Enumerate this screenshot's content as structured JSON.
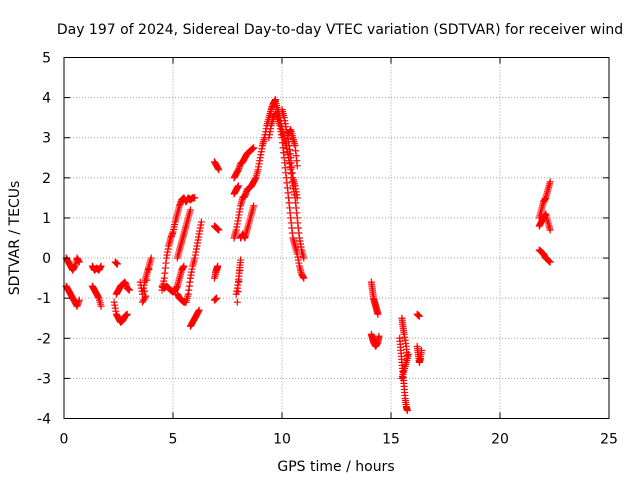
{
  "chart_data": {
    "type": "scatter",
    "title": "Day 197 of 2024, Sidereal Day-to-day VTEC variation (SDTVAR) for receiver wind",
    "xlabel": "GPS time / hours",
    "ylabel": "SDTVAR / TECUs",
    "xlim": [
      0,
      25
    ],
    "ylim": [
      -4,
      5
    ],
    "xticks": [
      "0",
      "5",
      "10",
      "15",
      "20",
      "25"
    ],
    "yticks": [
      "-4",
      "-3",
      "-2",
      "-1",
      "0",
      "1",
      "2",
      "3",
      "4",
      "5"
    ],
    "xtick_values": [
      0,
      5,
      10,
      15,
      20,
      25
    ],
    "ytick_values": [
      -4,
      -3,
      -2,
      -1,
      0,
      1,
      2,
      3,
      4,
      5
    ],
    "grid": true,
    "marker": "+",
    "series_color": "#ff0000",
    "series": [
      {
        "name": "SDTVAR",
        "segments": [
          [
            [
              0.1,
              0.0
            ],
            [
              0.2,
              -0.1
            ],
            [
              0.3,
              -0.2
            ],
            [
              0.4,
              -0.3
            ],
            [
              0.5,
              -0.2
            ],
            [
              0.6,
              0.0
            ],
            [
              0.7,
              -0.1
            ]
          ],
          [
            [
              0.1,
              -0.7
            ],
            [
              0.2,
              -0.8
            ],
            [
              0.3,
              -0.9
            ],
            [
              0.4,
              -1.0
            ],
            [
              0.5,
              -1.1
            ],
            [
              0.6,
              -1.2
            ],
            [
              0.7,
              -1.05
            ]
          ],
          [
            [
              1.3,
              -0.2
            ],
            [
              1.4,
              -0.3
            ],
            [
              1.5,
              -0.25
            ],
            [
              1.6,
              -0.3
            ],
            [
              1.7,
              -0.2
            ]
          ],
          [
            [
              1.3,
              -0.7
            ],
            [
              1.4,
              -0.8
            ],
            [
              1.5,
              -0.9
            ],
            [
              1.6,
              -1.0
            ],
            [
              1.7,
              -1.2
            ]
          ],
          [
            [
              2.35,
              -0.1
            ],
            [
              2.45,
              -0.15
            ]
          ],
          [
            [
              2.3,
              -1.1
            ],
            [
              2.4,
              -1.4
            ],
            [
              2.5,
              -1.5
            ],
            [
              2.6,
              -1.6
            ],
            [
              2.7,
              -1.55
            ],
            [
              2.8,
              -1.45
            ],
            [
              2.9,
              -1.4
            ]
          ],
          [
            [
              2.4,
              -0.9
            ],
            [
              2.5,
              -0.8
            ],
            [
              2.6,
              -0.7
            ],
            [
              2.7,
              -0.65
            ],
            [
              2.8,
              -0.6
            ],
            [
              2.9,
              -0.75
            ],
            [
              3.0,
              -0.8
            ]
          ],
          [
            [
              3.5,
              -0.6
            ],
            [
              3.6,
              -0.9
            ],
            [
              3.7,
              -0.6
            ],
            [
              3.8,
              -0.4
            ],
            [
              3.9,
              -0.2
            ],
            [
              4.0,
              0.0
            ],
            [
              3.6,
              -1.1
            ],
            [
              3.75,
              -0.95
            ]
          ],
          [
            [
              4.5,
              -0.8
            ],
            [
              4.6,
              -0.5
            ],
            [
              4.7,
              0.0
            ],
            [
              4.8,
              0.3
            ],
            [
              4.9,
              0.5
            ],
            [
              5.0,
              0.65
            ],
            [
              5.1,
              0.9
            ],
            [
              5.2,
              1.1
            ],
            [
              5.3,
              1.3
            ],
            [
              5.4,
              1.45
            ],
            [
              5.5,
              1.5
            ],
            [
              5.6,
              1.4
            ],
            [
              5.7,
              1.5
            ],
            [
              5.8,
              1.45
            ],
            [
              5.9,
              1.5
            ],
            [
              6.0,
              1.5
            ]
          ],
          [
            [
              4.5,
              -0.7
            ],
            [
              4.6,
              -0.75
            ],
            [
              4.7,
              -0.7
            ],
            [
              4.8,
              -0.75
            ],
            [
              4.9,
              -0.8
            ],
            [
              5.0,
              -0.85
            ],
            [
              5.1,
              -0.8
            ],
            [
              5.2,
              -0.7
            ],
            [
              5.3,
              -0.5
            ],
            [
              5.4,
              -0.3
            ],
            [
              5.5,
              -0.2
            ]
          ],
          [
            [
              5.2,
              -0.9
            ],
            [
              5.3,
              -1.0
            ],
            [
              5.4,
              -1.05
            ],
            [
              5.5,
              -1.1
            ],
            [
              5.6,
              -1.1
            ],
            [
              5.7,
              -0.9
            ],
            [
              5.8,
              -0.5
            ],
            [
              5.9,
              -0.2
            ],
            [
              6.0,
              0.0
            ],
            [
              6.1,
              0.3
            ],
            [
              6.2,
              0.6
            ],
            [
              6.3,
              0.9
            ]
          ],
          [
            [
              5.2,
              0.0
            ],
            [
              5.3,
              0.2
            ],
            [
              5.4,
              0.4
            ],
            [
              5.5,
              0.6
            ],
            [
              5.6,
              0.8
            ],
            [
              5.7,
              1.0
            ],
            [
              5.8,
              1.2
            ]
          ],
          [
            [
              5.8,
              -1.7
            ],
            [
              5.9,
              -1.6
            ],
            [
              6.0,
              -1.5
            ],
            [
              6.1,
              -1.4
            ],
            [
              6.2,
              -1.3
            ]
          ],
          [
            [
              6.9,
              2.4
            ],
            [
              7.0,
              2.3
            ],
            [
              7.1,
              2.2
            ]
          ],
          [
            [
              6.9,
              0.8
            ],
            [
              7.0,
              0.75
            ],
            [
              7.1,
              0.7
            ]
          ],
          [
            [
              6.9,
              -0.5
            ],
            [
              7.0,
              -0.3
            ],
            [
              7.05,
              -0.2
            ],
            [
              6.95,
              -0.35
            ]
          ],
          [
            [
              6.9,
              -1.05
            ],
            [
              7.0,
              -1.0
            ]
          ],
          [
            [
              7.8,
              0.5
            ],
            [
              7.9,
              0.7
            ],
            [
              8.0,
              1.0
            ],
            [
              8.1,
              1.3
            ],
            [
              8.2,
              1.5
            ],
            [
              8.3,
              1.55
            ],
            [
              8.4,
              1.7
            ],
            [
              8.5,
              1.75
            ],
            [
              8.6,
              1.8
            ],
            [
              8.7,
              1.9
            ],
            [
              8.8,
              2.0
            ],
            [
              8.9,
              2.2
            ],
            [
              9.0,
              2.5
            ],
            [
              9.1,
              2.8
            ],
            [
              9.2,
              3.0
            ],
            [
              9.3,
              3.3
            ],
            [
              9.4,
              3.5
            ],
            [
              9.5,
              3.7
            ],
            [
              9.6,
              3.85
            ],
            [
              9.7,
              3.95
            ]
          ],
          [
            [
              7.8,
              2.0
            ],
            [
              7.9,
              2.1
            ],
            [
              8.0,
              2.2
            ],
            [
              8.1,
              2.35
            ],
            [
              8.2,
              2.4
            ],
            [
              8.3,
              2.5
            ],
            [
              8.4,
              2.6
            ],
            [
              8.5,
              2.65
            ],
            [
              8.6,
              2.7
            ],
            [
              8.7,
              2.75
            ]
          ],
          [
            [
              7.8,
              1.6
            ],
            [
              7.9,
              1.7
            ],
            [
              8.0,
              1.8
            ]
          ],
          [
            [
              8.1,
              0.5
            ],
            [
              8.2,
              0.6
            ],
            [
              8.3,
              0.5
            ],
            [
              8.4,
              0.7
            ],
            [
              8.5,
              0.9
            ],
            [
              8.6,
              1.1
            ],
            [
              8.7,
              1.3
            ]
          ],
          [
            [
              7.9,
              -0.9
            ],
            [
              8.0,
              -0.6
            ],
            [
              8.05,
              -0.3
            ],
            [
              8.1,
              -0.05
            ],
            [
              7.95,
              -1.1
            ]
          ],
          [
            [
              9.4,
              3.0
            ],
            [
              9.5,
              3.3
            ],
            [
              9.6,
              3.5
            ],
            [
              9.7,
              3.6
            ],
            [
              9.8,
              3.5
            ],
            [
              9.9,
              3.3
            ],
            [
              10.0,
              3.0
            ],
            [
              10.1,
              2.5
            ],
            [
              10.2,
              2.0
            ],
            [
              10.3,
              1.5
            ],
            [
              10.4,
              1.0
            ],
            [
              10.5,
              0.5
            ],
            [
              10.6,
              0.3
            ],
            [
              10.7,
              0.1
            ],
            [
              10.8,
              -0.2
            ],
            [
              10.9,
              -0.4
            ],
            [
              11.0,
              -0.5
            ]
          ],
          [
            [
              9.7,
              3.9
            ],
            [
              9.8,
              3.7
            ],
            [
              9.9,
              3.5
            ],
            [
              10.0,
              3.2
            ],
            [
              10.1,
              3.0
            ],
            [
              10.2,
              2.8
            ],
            [
              10.3,
              2.5
            ],
            [
              10.4,
              2.2
            ],
            [
              10.5,
              1.8
            ],
            [
              10.6,
              1.5
            ],
            [
              10.7,
              1.0
            ],
            [
              10.8,
              0.5
            ],
            [
              10.9,
              0.2
            ],
            [
              11.0,
              0.0
            ]
          ],
          [
            [
              10.0,
              3.7
            ],
            [
              10.1,
              3.5
            ],
            [
              10.2,
              3.2
            ],
            [
              10.3,
              2.9
            ],
            [
              10.4,
              2.5
            ],
            [
              10.5,
              2.0
            ],
            [
              10.6,
              1.8
            ],
            [
              10.7,
              1.5
            ]
          ],
          [
            [
              10.3,
              3.1
            ],
            [
              10.4,
              3.2
            ],
            [
              10.5,
              3.0
            ],
            [
              10.6,
              2.8
            ],
            [
              10.7,
              2.3
            ]
          ],
          [
            [
              14.1,
              -0.6
            ],
            [
              14.15,
              -0.8
            ],
            [
              14.2,
              -1.0
            ],
            [
              14.25,
              -1.1
            ],
            [
              14.3,
              -1.2
            ],
            [
              14.35,
              -1.3
            ],
            [
              14.4,
              -1.4
            ]
          ],
          [
            [
              14.1,
              -1.9
            ],
            [
              14.15,
              -2.0
            ],
            [
              14.2,
              -2.1
            ],
            [
              14.3,
              -2.2
            ],
            [
              14.4,
              -2.1
            ],
            [
              14.45,
              -1.95
            ]
          ],
          [
            [
              15.4,
              -2.0
            ],
            [
              15.45,
              -2.3
            ],
            [
              15.5,
              -2.6
            ],
            [
              15.55,
              -2.9
            ],
            [
              15.6,
              -3.2
            ],
            [
              15.65,
              -3.5
            ],
            [
              15.7,
              -3.7
            ],
            [
              15.75,
              -3.8
            ]
          ],
          [
            [
              15.5,
              -1.5
            ],
            [
              15.55,
              -1.7
            ],
            [
              15.6,
              -1.9
            ],
            [
              15.7,
              -2.2
            ],
            [
              15.75,
              -2.5
            ]
          ],
          [
            [
              15.5,
              -3.0
            ],
            [
              15.6,
              -2.8
            ],
            [
              15.7,
              -2.6
            ],
            [
              15.8,
              -2.4
            ]
          ],
          [
            [
              16.2,
              -1.4
            ],
            [
              16.3,
              -1.45
            ]
          ],
          [
            [
              16.2,
              -2.2
            ],
            [
              16.25,
              -2.4
            ],
            [
              16.3,
              -2.6
            ],
            [
              16.35,
              -2.5
            ],
            [
              16.4,
              -2.3
            ]
          ],
          [
            [
              21.8,
              1.0
            ],
            [
              21.9,
              1.2
            ],
            [
              22.0,
              1.4
            ],
            [
              22.1,
              1.5
            ],
            [
              22.2,
              1.7
            ],
            [
              22.3,
              1.9
            ]
          ],
          [
            [
              21.8,
              0.8
            ],
            [
              21.9,
              0.9
            ],
            [
              22.0,
              1.0
            ],
            [
              22.1,
              1.1
            ],
            [
              22.2,
              0.9
            ],
            [
              22.3,
              0.7
            ]
          ],
          [
            [
              21.8,
              0.2
            ],
            [
              21.9,
              0.15
            ],
            [
              22.0,
              0.1
            ],
            [
              22.1,
              0.0
            ],
            [
              22.2,
              -0.05
            ],
            [
              22.3,
              -0.1
            ]
          ]
        ]
      }
    ]
  }
}
